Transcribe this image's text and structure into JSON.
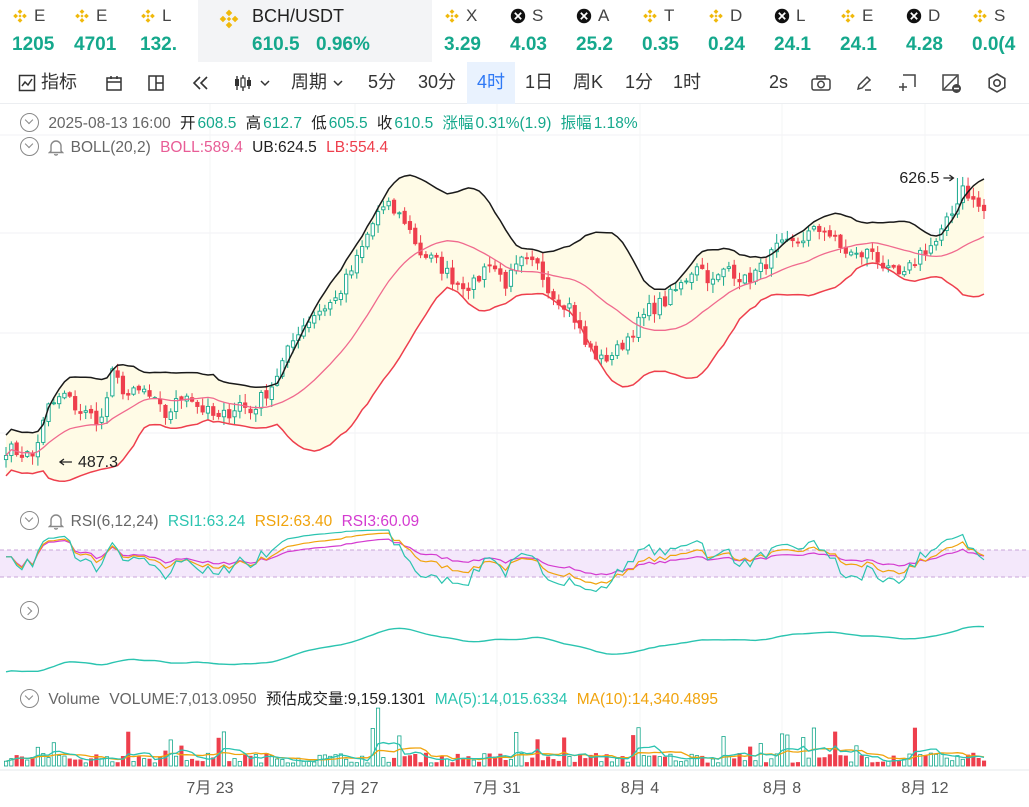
{
  "ticker": [
    {
      "name": "E",
      "price": "1205",
      "icon": "binance-coin-icon",
      "w": 62
    },
    {
      "name": "E",
      "price": "4701",
      "icon": "binance-coin-icon",
      "w": 66
    },
    {
      "name": "L",
      "price": "132.",
      "icon": "binance-coin-icon",
      "w": 70
    },
    {
      "name": "BCH/USDT",
      "price": "610.5",
      "change": "0.96%",
      "icon": "binance-coin-icon",
      "active": true,
      "w": 234
    },
    {
      "name": "X",
      "price": "3.29",
      "icon": "binance-coin-icon",
      "w": 66
    },
    {
      "name": "S",
      "price": "4.03",
      "icon": "x-coin-icon",
      "w": 66
    },
    {
      "name": "A",
      "price": "25.2",
      "icon": "x-coin-icon",
      "w": 66
    },
    {
      "name": "T",
      "price": "0.35",
      "icon": "binance-coin-icon",
      "w": 66
    },
    {
      "name": "D",
      "price": "0.24",
      "icon": "binance-coin-icon",
      "w": 66
    },
    {
      "name": "L",
      "price": "24.1",
      "icon": "x-coin-icon",
      "w": 66
    },
    {
      "name": "E",
      "price": "24.1",
      "icon": "binance-coin-icon",
      "w": 66
    },
    {
      "name": "D",
      "price": "4.28",
      "icon": "x-coin-icon",
      "w": 66
    },
    {
      "name": "S",
      "price": "0.0(4",
      "icon": "binance-coin-icon",
      "w": 60
    }
  ],
  "toolbar": {
    "indicators": "指标",
    "period_label": "周期",
    "intervals": [
      "5分",
      "30分",
      "4时",
      "1日",
      "周K",
      "1分",
      "1时"
    ],
    "selected_interval": "4时",
    "refresh": "2s"
  },
  "ohlc": {
    "date": "2025-08-13 16:00",
    "open_label": "开",
    "open": "608.5",
    "high_label": "高",
    "high": "612.7",
    "low_label": "低",
    "low": "605.5",
    "close_label": "收",
    "close": "610.5",
    "change_label": "涨幅",
    "change": "0.31%(1.9)",
    "amplitude_label": "振幅",
    "amplitude": "1.18%"
  },
  "boll_legend": {
    "name": "BOLL(20,2)",
    "boll": "BOLL:589.4",
    "ub": "UB:624.5",
    "lb": "LB:554.4"
  },
  "rsi_legend": {
    "name": "RSI(6,12,24)",
    "rsi1": "RSI1:63.24",
    "rsi2": "RSI2:63.40",
    "rsi3": "RSI3:60.09"
  },
  "volume_legend": {
    "name": "Volume",
    "volume": "VOLUME:7,013.0950",
    "estimate": "预估成交量:9,159.1301",
    "ma5": "MA(5):14,015.6334",
    "ma10": "MA(10):14,340.4895"
  },
  "colors": {
    "up": "#15a88c",
    "down": "#ee3f4d",
    "boll_mid": "#f06a8e",
    "boll_upper": "#1a1a1a",
    "boll_lower": "#ee3f4d",
    "band_fill": "#fffbe6",
    "rsi1": "#2bc4b0",
    "rsi2": "#f0a30c",
    "rsi3": "#d43bd0"
  },
  "chart_data": {
    "type": "candlestick",
    "symbol": "BCH/USDT",
    "interval": "4时",
    "x_ticks": [
      "7月 23",
      "7月 27",
      "7月 31",
      "8月 4",
      "8月 8",
      "8月 12"
    ],
    "max_label": "626.5",
    "min_label": "487.3",
    "price_min": 487.3,
    "price_max": 626.5,
    "close_anchors": [
      [
        0,
        494
      ],
      [
        5,
        490
      ],
      [
        8,
        514
      ],
      [
        11,
        520
      ],
      [
        14,
        512
      ],
      [
        18,
        508
      ],
      [
        20,
        530
      ],
      [
        23,
        520
      ],
      [
        26,
        522
      ],
      [
        30,
        510
      ],
      [
        34,
        522
      ],
      [
        36,
        515
      ],
      [
        40,
        508
      ],
      [
        44,
        516
      ],
      [
        46,
        512
      ],
      [
        50,
        525
      ],
      [
        55,
        552
      ],
      [
        58,
        560
      ],
      [
        62,
        567
      ],
      [
        66,
        586
      ],
      [
        70,
        610
      ],
      [
        72,
        612
      ],
      [
        75,
        606
      ],
      [
        78,
        590
      ],
      [
        81,
        585
      ],
      [
        85,
        575
      ],
      [
        88,
        574
      ],
      [
        91,
        586
      ],
      [
        94,
        575
      ],
      [
        97,
        585
      ],
      [
        100,
        583
      ],
      [
        103,
        569
      ],
      [
        106,
        564
      ],
      [
        109,
        545
      ],
      [
        112,
        537
      ],
      [
        115,
        542
      ],
      [
        118,
        552
      ],
      [
        121,
        562
      ],
      [
        124,
        566
      ],
      [
        127,
        574
      ],
      [
        130,
        585
      ],
      [
        133,
        575
      ],
      [
        136,
        583
      ],
      [
        139,
        576
      ],
      [
        142,
        582
      ],
      [
        145,
        592
      ],
      [
        148,
        594
      ],
      [
        151,
        599
      ],
      [
        154,
        602
      ],
      [
        157,
        592
      ],
      [
        160,
        588
      ],
      [
        163,
        591
      ],
      [
        166,
        580
      ],
      [
        169,
        578
      ],
      [
        172,
        590
      ],
      [
        175,
        595
      ],
      [
        178,
        609
      ],
      [
        180,
        623
      ],
      [
        182,
        615
      ],
      [
        184,
        610
      ]
    ],
    "boll": {
      "period": 20,
      "k": 2,
      "last_mid": 589.4,
      "last_upper": 624.5,
      "last_lower": 554.4
    },
    "rsi": {
      "periods": [
        6,
        12,
        24
      ],
      "last": [
        63.24,
        63.4,
        60.09
      ],
      "bands": [
        30,
        70
      ]
    },
    "volume": {
      "last": 7013.095,
      "estimate": 9159.1301,
      "ma5": 14015.6334,
      "ma10": 14340.4895
    }
  }
}
